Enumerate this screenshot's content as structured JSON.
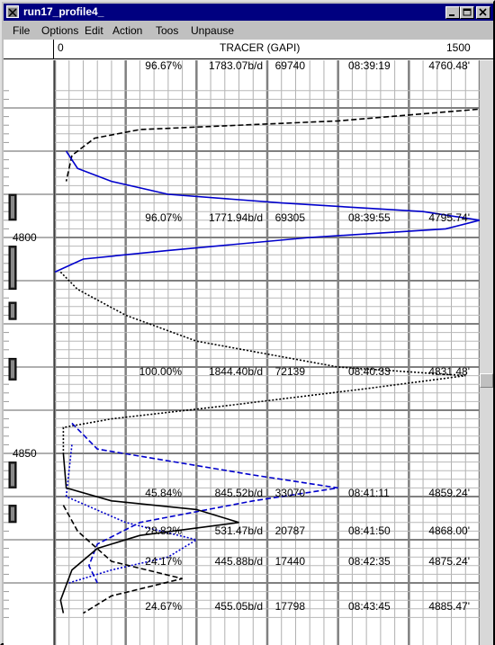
{
  "window": {
    "title": "run17_profile4_",
    "minimize_icon": "minimize-icon",
    "maximize_icon": "maximize-icon",
    "close_icon": "close-icon"
  },
  "menu": {
    "items": [
      {
        "label": "File",
        "mnemonic": "F"
      },
      {
        "label": "Options",
        "mnemonic": "p"
      },
      {
        "label": "Edit",
        "mnemonic": ""
      },
      {
        "label": "Action",
        "mnemonic": "A"
      },
      {
        "label": "Toos",
        "mnemonic": ""
      },
      {
        "label": "Unpause",
        "mnemonic": "U"
      }
    ]
  },
  "track": {
    "scale_min": "0",
    "scale_title": "TRACER (GAPI)",
    "scale_max": "1500"
  },
  "depth_labels": [
    "4800",
    "4850"
  ],
  "readouts": [
    {
      "percent": "96.67%",
      "rate": "1783.07b/d",
      "counts": "69740",
      "time": "08:39:19",
      "depth": "4760.48'"
    },
    {
      "percent": "96.07%",
      "rate": "1771.94b/d",
      "counts": "69305",
      "time": "08:39:55",
      "depth": "4795.74'"
    },
    {
      "percent": "100.00%",
      "rate": "1844.40b/d",
      "counts": "72139",
      "time": "08:40:33",
      "depth": "4831.48'"
    },
    {
      "percent": "45.84%",
      "rate": "845.52b/d",
      "counts": "33070",
      "time": "08:41:11",
      "depth": "4859.24'"
    },
    {
      "percent": "28.82%",
      "rate": "531.47b/d",
      "counts": "20787",
      "time": "08:41:50",
      "depth": "4868.00'"
    },
    {
      "percent": "24.17%",
      "rate": "445.88b/d",
      "counts": "17440",
      "time": "08:42:35",
      "depth": "4875.24'"
    },
    {
      "percent": "24.67%",
      "rate": "455.05b/d",
      "counts": "17798",
      "time": "08:43:45",
      "depth": "4885.47'"
    }
  ],
  "colors": {
    "black_dashed": "#000000",
    "blue_solid": "#0000cc",
    "black_dotted": "#000000",
    "blue_dashed": "#0000cc",
    "blue_dotted": "#0000cc",
    "black_solid": "#000000"
  },
  "chart_data": {
    "type": "line",
    "title": "",
    "xlabel": "TRACER (GAPI)",
    "xlim": [
      0,
      1500
    ],
    "y_axis": "depth (ft), increasing downward",
    "ylim": [
      4766,
      4887
    ],
    "series": [
      {
        "color": "#000000",
        "style": "dashed",
        "points": [
          [
            1550,
            4770
          ],
          [
            1000,
            4773
          ],
          [
            300,
            4775
          ],
          [
            140,
            4777
          ],
          [
            60,
            4781
          ],
          [
            40,
            4787
          ]
        ]
      },
      {
        "color": "#0000cc",
        "style": "solid",
        "points": [
          [
            40,
            4780
          ],
          [
            80,
            4784
          ],
          [
            200,
            4787
          ],
          [
            400,
            4790
          ],
          [
            800,
            4792
          ],
          [
            1300,
            4794
          ],
          [
            1500,
            4796
          ],
          [
            1380,
            4798
          ],
          [
            900,
            4800
          ],
          [
            400,
            4803
          ],
          [
            100,
            4805
          ],
          [
            0,
            4808
          ]
        ]
      },
      {
        "color": "#000000",
        "style": "dotted",
        "points": [
          [
            20,
            4808
          ],
          [
            80,
            4812
          ],
          [
            250,
            4818
          ],
          [
            500,
            4824
          ],
          [
            1000,
            4830
          ],
          [
            1450,
            4832
          ],
          [
            1100,
            4835
          ],
          [
            600,
            4839
          ],
          [
            200,
            4842
          ],
          [
            30,
            4844
          ],
          [
            30,
            4850
          ]
        ]
      },
      {
        "color": "#0000cc",
        "style": "dashed",
        "points": [
          [
            60,
            4843
          ],
          [
            150,
            4849
          ],
          [
            700,
            4855
          ],
          [
            1000,
            4858
          ],
          [
            700,
            4861
          ],
          [
            300,
            4866
          ],
          [
            150,
            4871
          ],
          [
            120,
            4876
          ],
          [
            150,
            4880
          ]
        ]
      },
      {
        "color": "#0000cc",
        "style": "dotted",
        "points": [
          [
            60,
            4848
          ],
          [
            40,
            4860
          ],
          [
            250,
            4866
          ],
          [
            500,
            4870
          ],
          [
            400,
            4874
          ],
          [
            200,
            4877
          ],
          [
            50,
            4880
          ]
        ]
      },
      {
        "color": "#000000",
        "style": "solid",
        "points": [
          [
            30,
            4850
          ],
          [
            40,
            4858
          ],
          [
            200,
            4861
          ],
          [
            500,
            4863
          ],
          [
            650,
            4866
          ],
          [
            300,
            4869
          ],
          [
            150,
            4872
          ],
          [
            60,
            4877
          ],
          [
            20,
            4884
          ],
          [
            30,
            4887
          ]
        ]
      },
      {
        "color": "#000000",
        "style": "dashed",
        "points": [
          [
            30,
            4862
          ],
          [
            80,
            4868
          ],
          [
            200,
            4875
          ],
          [
            450,
            4879
          ],
          [
            200,
            4883
          ],
          [
            100,
            4887
          ]
        ]
      }
    ]
  }
}
